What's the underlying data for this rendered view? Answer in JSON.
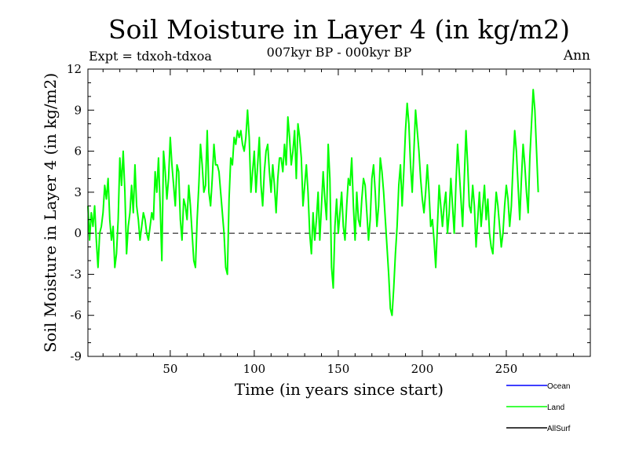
{
  "chart_data": {
    "type": "line",
    "title": "Soil Moisture in Layer 4 (in kg/m2)",
    "subtitle": "007kyr BP - 000kyr BP",
    "left_label": "Expt = tdxoh-tdxoa",
    "right_label": "Ann",
    "xlabel": "Time (in years since start)",
    "ylabel": "Soil Moisture in Layer 4 (in kg/m2)",
    "xlim": [
      1,
      300
    ],
    "ylim": [
      -9,
      12
    ],
    "xticks": [
      50,
      100,
      150,
      200,
      250
    ],
    "yticks": [
      -9,
      -6,
      -3,
      0,
      3,
      6,
      9,
      12
    ],
    "zero_line": "dashed",
    "legend_position": "bottom-right",
    "legend": [
      {
        "name": "Ocean",
        "color": "#0000ff"
      },
      {
        "name": "Land",
        "color": "#00ff00"
      },
      {
        "name": "AllSurf",
        "color": "#000000"
      }
    ],
    "series": [
      {
        "name": "Land",
        "color": "#00ff00",
        "x_start": 1,
        "x_step": 1,
        "values": [
          2.0,
          -0.5,
          1.5,
          0.5,
          2.0,
          -0.5,
          -2.5,
          0.0,
          0.5,
          1.5,
          3.5,
          2.5,
          4.0,
          1.0,
          -0.5,
          0.5,
          -2.5,
          -1.5,
          1.0,
          5.5,
          3.5,
          6.0,
          3.0,
          -1.5,
          0.5,
          1.5,
          3.5,
          1.5,
          5.0,
          2.0,
          1.0,
          -0.5,
          0.5,
          1.5,
          1.0,
          0.0,
          -0.5,
          0.5,
          1.5,
          1.0,
          4.5,
          3.0,
          5.5,
          2.0,
          -2.0,
          6.0,
          4.5,
          2.5,
          4.0,
          7.0,
          5.0,
          3.5,
          2.0,
          5.0,
          4.5,
          1.0,
          -0.5,
          2.5,
          2.0,
          1.0,
          3.5,
          2.0,
          0.0,
          -2.0,
          -2.5,
          1.0,
          3.5,
          6.5,
          5.0,
          3.0,
          3.5,
          7.5,
          3.0,
          2.0,
          4.0,
          6.5,
          5.0,
          5.0,
          4.5,
          3.0,
          1.5,
          0.0,
          -2.5,
          -3.0,
          2.5,
          5.5,
          5.0,
          7.0,
          6.5,
          7.5,
          7.0,
          7.5,
          6.5,
          6.0,
          7.0,
          9.0,
          7.0,
          3.0,
          4.5,
          6.0,
          3.0,
          5.0,
          7.0,
          3.5,
          2.0,
          4.5,
          6.0,
          6.5,
          4.5,
          3.0,
          5.0,
          3.5,
          1.5,
          4.0,
          5.5,
          5.5,
          4.5,
          6.5,
          5.0,
          8.5,
          7.0,
          5.0,
          6.0,
          7.5,
          4.0,
          8.0,
          7.0,
          5.5,
          2.0,
          3.5,
          5.0,
          3.0,
          0.0,
          -1.5,
          1.5,
          -0.5,
          1.0,
          3.0,
          -0.5,
          2.0,
          4.5,
          2.5,
          1.0,
          6.5,
          4.0,
          -2.5,
          -4.0,
          0.5,
          2.5,
          0.0,
          1.5,
          3.0,
          0.5,
          -0.5,
          2.0,
          4.0,
          3.5,
          5.5,
          2.0,
          -0.5,
          3.0,
          1.0,
          0.5,
          2.5,
          4.0,
          3.5,
          1.5,
          -0.5,
          1.0,
          4.0,
          5.0,
          3.0,
          0.5,
          2.0,
          5.5,
          4.5,
          3.0,
          1.0,
          -1.0,
          -3.0,
          -5.5,
          -6.0,
          -4.0,
          -1.5,
          0.5,
          3.5,
          5.0,
          2.0,
          4.5,
          7.5,
          9.5,
          8.0,
          5.0,
          3.0,
          6.0,
          9.0,
          7.5,
          6.0,
          4.0,
          2.5,
          1.5,
          3.0,
          5.0,
          3.0,
          0.5,
          1.0,
          -0.5,
          -2.5,
          0.5,
          3.5,
          2.0,
          0.5,
          2.0,
          3.0,
          0.0,
          1.5,
          4.0,
          2.0,
          0.0,
          3.5,
          6.5,
          4.5,
          2.5,
          0.5,
          4.0,
          7.5,
          5.0,
          2.0,
          1.5,
          3.5,
          2.0,
          -1.0,
          1.0,
          3.0,
          0.5,
          2.0,
          3.5,
          1.0,
          2.5,
          0.0,
          -1.0,
          -1.5,
          1.0,
          3.0,
          2.0,
          0.5,
          -1.0,
          0.0,
          2.0,
          3.5,
          2.5,
          0.5,
          2.0,
          5.0,
          7.5,
          6.0,
          3.5,
          1.0,
          4.0,
          6.5,
          5.0,
          3.0,
          1.5,
          5.5,
          8.0,
          10.5,
          9.0,
          6.0,
          3.0
        ]
      }
    ]
  }
}
